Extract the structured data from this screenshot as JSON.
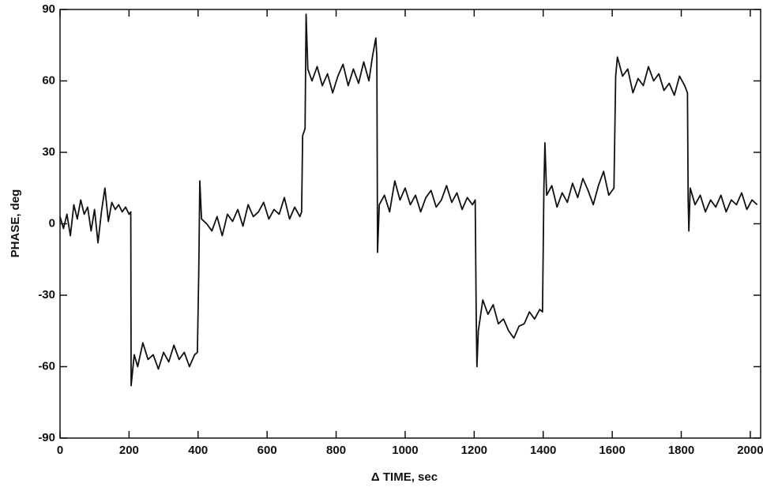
{
  "chart_data": {
    "type": "line",
    "xlabel": "Δ TIME, sec",
    "ylabel": "PHASE, deg",
    "xlim": [
      0,
      2030
    ],
    "ylim": [
      -90,
      90
    ],
    "xticks": [
      0,
      200,
      400,
      600,
      800,
      1000,
      1200,
      1400,
      1600,
      1800,
      2000
    ],
    "yticks": [
      -90,
      -60,
      -30,
      0,
      30,
      60,
      90
    ],
    "series": [
      {
        "color": "#111111",
        "x": [
          0,
          10,
          20,
          30,
          40,
          50,
          60,
          70,
          80,
          90,
          100,
          110,
          120,
          130,
          140,
          150,
          160,
          170,
          180,
          190,
          200,
          205,
          206,
          215,
          225,
          240,
          255,
          270,
          285,
          300,
          315,
          330,
          345,
          360,
          375,
          390,
          398,
          402,
          405,
          410,
          425,
          440,
          455,
          470,
          485,
          500,
          515,
          530,
          545,
          560,
          575,
          590,
          605,
          620,
          635,
          650,
          665,
          680,
          695,
          700,
          703,
          710,
          713,
          718,
          730,
          745,
          760,
          775,
          790,
          805,
          820,
          835,
          850,
          865,
          880,
          895,
          905,
          915,
          918,
          920,
          925,
          940,
          955,
          970,
          985,
          1000,
          1015,
          1030,
          1045,
          1060,
          1075,
          1090,
          1105,
          1120,
          1135,
          1150,
          1165,
          1180,
          1195,
          1203,
          1206,
          1208,
          1212,
          1225,
          1240,
          1255,
          1270,
          1285,
          1300,
          1315,
          1330,
          1345,
          1360,
          1375,
          1390,
          1398,
          1402,
          1405,
          1410,
          1425,
          1440,
          1455,
          1470,
          1485,
          1500,
          1515,
          1530,
          1545,
          1560,
          1575,
          1590,
          1605,
          1610,
          1615,
          1630,
          1645,
          1660,
          1675,
          1690,
          1705,
          1720,
          1735,
          1750,
          1765,
          1780,
          1795,
          1810,
          1818,
          1820,
          1822,
          1826,
          1840,
          1855,
          1870,
          1885,
          1900,
          1915,
          1930,
          1945,
          1960,
          1975,
          1990,
          2005,
          2020
        ],
        "values": [
          3,
          -2,
          4,
          -5,
          8,
          2,
          10,
          4,
          7,
          -3,
          6,
          -8,
          5,
          15,
          1,
          9,
          6,
          8,
          5,
          7,
          4,
          5,
          -68,
          -55,
          -60,
          -50,
          -57,
          -55,
          -61,
          -54,
          -58,
          -51,
          -57,
          -54,
          -60,
          -55,
          -54,
          -20,
          18,
          2,
          0,
          -3,
          3,
          -5,
          4,
          1,
          6,
          -1,
          8,
          3,
          5,
          9,
          2,
          6,
          4,
          11,
          2,
          7,
          3,
          5,
          37,
          40,
          88,
          65,
          60,
          66,
          58,
          63,
          55,
          62,
          67,
          58,
          65,
          59,
          68,
          60,
          70,
          78,
          70,
          -12,
          8,
          12,
          5,
          18,
          10,
          15,
          8,
          12,
          5,
          11,
          14,
          7,
          10,
          16,
          9,
          13,
          6,
          11,
          8,
          10,
          -40,
          -60,
          -45,
          -32,
          -38,
          -34,
          -42,
          -40,
          -45,
          -48,
          -43,
          -42,
          -37,
          -40,
          -36,
          -37,
          15,
          34,
          12,
          16,
          7,
          13,
          9,
          17,
          11,
          19,
          14,
          8,
          16,
          22,
          12,
          15,
          62,
          70,
          62,
          65,
          55,
          61,
          58,
          66,
          60,
          63,
          56,
          59,
          54,
          62,
          58,
          55,
          10,
          -3,
          15,
          8,
          12,
          5,
          10,
          7,
          12,
          5,
          10,
          8,
          13,
          6,
          10,
          8
        ]
      }
    ]
  }
}
